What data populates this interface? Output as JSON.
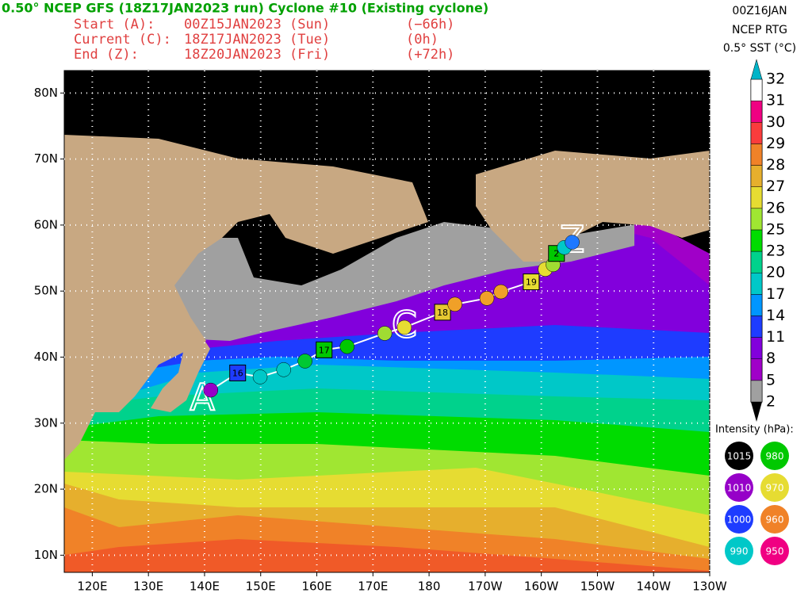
{
  "header": {
    "title": "0.50° NCEP GFS (18Z17JAN2023 run) Cyclone #10 (Existing cyclone)",
    "lines": [
      [
        "Start (A):",
        "00Z15JAN2023 (Sun)",
        "(−66h)"
      ],
      [
        "Current (C):",
        "18Z17JAN2023 (Tue)",
        "(0h)"
      ],
      [
        "End (Z):",
        "18Z20JAN2023 (Fri)",
        "(+72h)"
      ]
    ],
    "right": [
      "00Z16JAN",
      "NCEP RTG",
      "0.5° SST (°C)"
    ]
  },
  "map": {
    "xlim": [
      115,
      230
    ],
    "ylim": [
      7.4,
      83.4
    ],
    "grid": true,
    "xticks": [
      {
        "value": 120,
        "label": "120E"
      },
      {
        "value": 130,
        "label": "130E"
      },
      {
        "value": 140,
        "label": "140E"
      },
      {
        "value": 150,
        "label": "150E"
      },
      {
        "value": 160,
        "label": "160E"
      },
      {
        "value": 170,
        "label": "170E"
      },
      180,
      {
        "value": 190,
        "label": "170W"
      },
      {
        "value": 200,
        "label": "160W"
      },
      {
        "value": 210,
        "label": "150W"
      },
      {
        "value": 220,
        "label": "140W"
      },
      {
        "value": 230,
        "label": "130W"
      }
    ],
    "yticks": [
      {
        "value": 10,
        "label": "10N"
      },
      {
        "value": 20,
        "label": "20N"
      },
      {
        "value": 30,
        "label": "30N"
      },
      {
        "value": 40,
        "label": "40N"
      },
      {
        "value": 50,
        "label": "50N"
      },
      {
        "value": 60,
        "label": "60N"
      },
      {
        "value": 70,
        "label": "70N"
      },
      {
        "value": 80,
        "label": "80N"
      }
    ]
  },
  "track": {
    "color": "#ffffff",
    "points": [
      {
        "lon": 141.1,
        "lat": 35.0,
        "color": "#9600c8"
      },
      {
        "lon": 145.9,
        "lat": 37.6,
        "color": "#1e3cff",
        "label": "16"
      },
      {
        "lon": 149.9,
        "lat": 37.0,
        "color": "#00c8c8"
      },
      {
        "lon": 154.1,
        "lat": 38.1,
        "color": "#00c8c8"
      },
      {
        "lon": 157.9,
        "lat": 39.4,
        "color": "#00c832"
      },
      {
        "lon": 161.3,
        "lat": 41.1,
        "color": "#00c800",
        "label": "17"
      },
      {
        "lon": 165.4,
        "lat": 41.6,
        "color": "#00c800"
      },
      {
        "lon": 172.1,
        "lat": 43.6,
        "color": "#a0dc32"
      },
      {
        "lon": 175.6,
        "lat": 44.5,
        "color": "#e6dc32"
      },
      {
        "lon": 182.4,
        "lat": 46.8,
        "color": "#e6c832",
        "label": "18"
      },
      {
        "lon": 184.6,
        "lat": 48.0,
        "color": "#f0a028"
      },
      {
        "lon": 190.3,
        "lat": 48.9,
        "color": "#f0a028"
      },
      {
        "lon": 192.8,
        "lat": 49.9,
        "color": "#f0a028"
      },
      {
        "lon": 198.2,
        "lat": 51.4,
        "color": "#e6dc32",
        "label": "19"
      },
      {
        "lon": 200.7,
        "lat": 53.3,
        "color": "#e6dc32"
      },
      {
        "lon": 202.1,
        "lat": 54.0,
        "color": "#a0dc32"
      },
      {
        "lon": 202.7,
        "lat": 55.7,
        "color": "#00c800",
        "label": "2"
      },
      {
        "lon": 204.1,
        "lat": 56.6,
        "color": "#00c8c8"
      },
      {
        "lon": 205.5,
        "lat": 57.4,
        "color": "#1e78ff"
      }
    ],
    "markers": [
      {
        "label": "A",
        "lon": 139.6,
        "lat": 33.5
      },
      {
        "label": "C",
        "lon": 175.6,
        "lat": 44.5
      },
      {
        "label": "Z",
        "lon": 205.5,
        "lat": 57.4
      }
    ]
  },
  "sst_colorbar": {
    "levels": [
      2,
      5,
      8,
      11,
      14,
      17,
      20,
      23,
      25,
      26,
      27,
      28,
      29,
      30,
      31,
      32
    ],
    "colors": [
      "#a0a0a0",
      "#a000c8",
      "#8200dc",
      "#1e3cff",
      "#0096ff",
      "#00c8c8",
      "#00d28c",
      "#00dc00",
      "#a0e632",
      "#e6dc32",
      "#e6af2d",
      "#f08228",
      "#fa3c3c",
      "#f00082",
      "#ffffff"
    ],
    "low_color": "#000000",
    "high_color": "#00b4c8"
  },
  "intensity_legend": {
    "title": "Intensity (hPa):",
    "entries": [
      {
        "label": "1015",
        "color": "#000000"
      },
      {
        "label": "980",
        "color": "#00c800"
      },
      {
        "label": "1010",
        "color": "#9600c8"
      },
      {
        "label": "970",
        "color": "#e6dc32"
      },
      {
        "label": "1000",
        "color": "#1e3cff"
      },
      {
        "label": "960",
        "color": "#f08228"
      },
      {
        "label": "990",
        "color": "#00c8c8"
      },
      {
        "label": "950",
        "color": "#f00082"
      }
    ]
  }
}
